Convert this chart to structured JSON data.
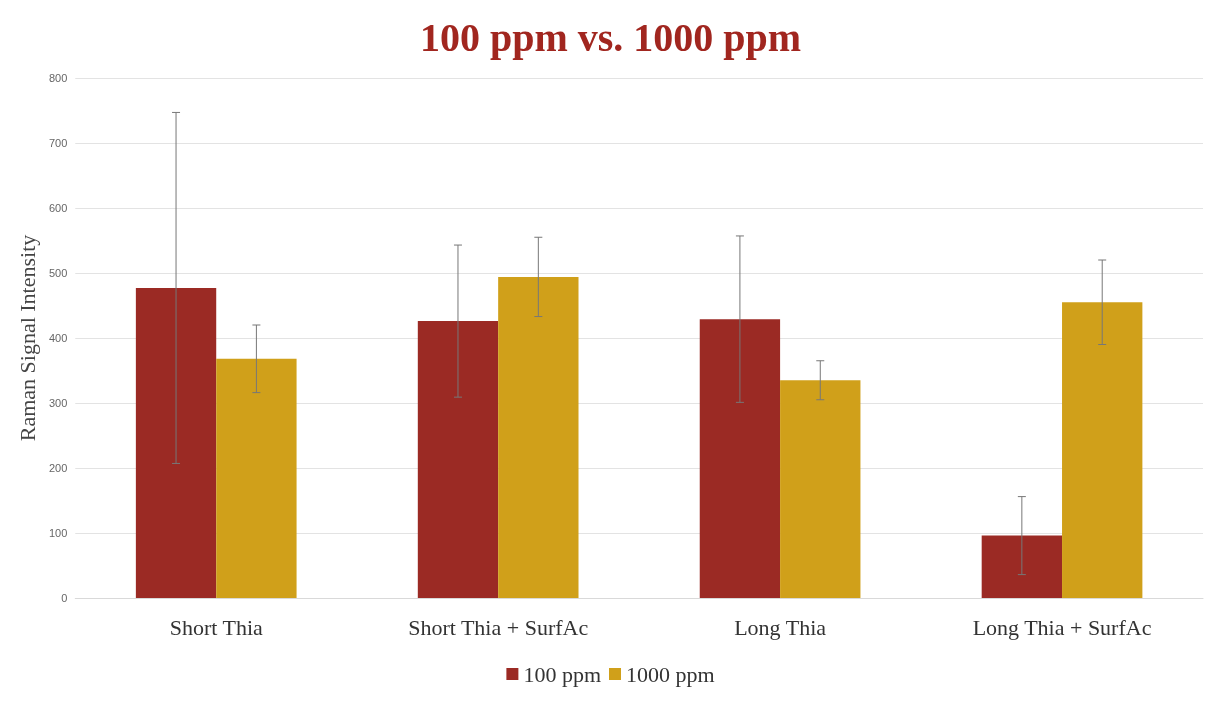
{
  "chart_data": {
    "type": "bar",
    "title": "100 ppm vs. 1000 ppm",
    "ylabel": "Raman Signal Intensity",
    "categories": [
      "Short Thia",
      "Short Thia + SurfAc",
      "Long Thia",
      "Long Thia + SurfAc"
    ],
    "series": [
      {
        "name": "100 ppm",
        "color": "#9b2a24",
        "values": [
          477,
          426,
          429,
          96
        ],
        "errors": [
          270,
          117,
          128,
          60
        ]
      },
      {
        "name": "1000 ppm",
        "color": "#d0a01a",
        "values": [
          368,
          494,
          335,
          455
        ],
        "errors": [
          52,
          61,
          30,
          65
        ]
      }
    ],
    "ylim": [
      0,
      800
    ],
    "yticks": [
      0,
      100,
      200,
      300,
      400,
      500,
      600,
      700,
      800
    ],
    "grid": "y",
    "legend": "bottom"
  }
}
